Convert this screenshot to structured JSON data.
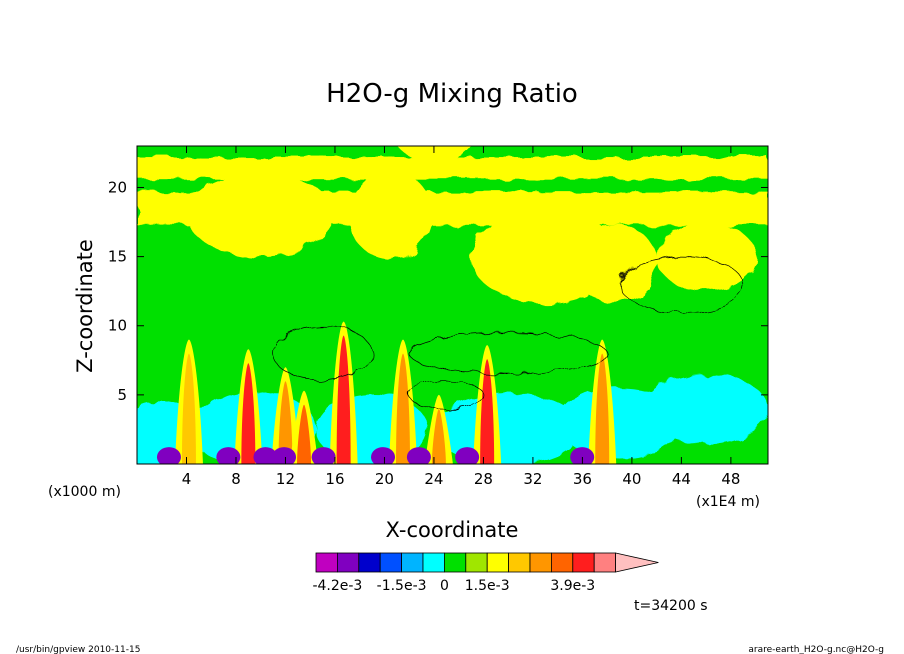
{
  "chart_data": {
    "type": "heatmap",
    "title": "H2O-g Mixing Ratio",
    "xlabel": "X-coordinate",
    "ylabel": "Z-coordinate",
    "x_unit_left": "(x1000 m)",
    "x_unit_right": "(x1E4 m)",
    "xlim": [
      0,
      51
    ],
    "ylim": [
      0,
      23
    ],
    "x_ticks": [
      4,
      8,
      12,
      16,
      20,
      24,
      28,
      32,
      36,
      40,
      44,
      48
    ],
    "y_ticks": [
      5,
      10,
      15,
      20
    ],
    "colorbar": {
      "colors": [
        "#c000c0",
        "#8000c0",
        "#0000cc",
        "#0050ff",
        "#00b4ff",
        "#00ffff",
        "#00e000",
        "#a0e600",
        "#ffff00",
        "#ffc800",
        "#ff9600",
        "#ff6400",
        "#ff1e1e",
        "#ff8080",
        "#ffc0c0"
      ],
      "labels": [
        {
          "text": "-4.2e-3",
          "index": 1
        },
        {
          "text": "-1.5e-3",
          "index": 4
        },
        {
          "text": "0",
          "index": 6
        },
        {
          "text": "1.5e-3",
          "index": 8
        },
        {
          "text": "3.9e-3",
          "index": 12
        }
      ]
    },
    "plumes": [
      {
        "x": 4.2,
        "top": 9.0,
        "core": "#ffc800"
      },
      {
        "x": 9.0,
        "top": 8.3,
        "core": "#ff1e1e"
      },
      {
        "x": 12.0,
        "top": 7.0,
        "core": "#ff9600"
      },
      {
        "x": 13.5,
        "top": 5.3,
        "core": "#ff6400"
      },
      {
        "x": 16.7,
        "top": 10.3,
        "core": "#ff1e1e"
      },
      {
        "x": 21.5,
        "top": 9.0,
        "core": "#ff9600"
      },
      {
        "x": 24.4,
        "top": 5.0,
        "core": "#ff9600"
      },
      {
        "x": 28.3,
        "top": 8.6,
        "core": "#ff1e1e"
      },
      {
        "x": 37.6,
        "top": 9.0,
        "core": "#ff9600"
      }
    ],
    "time_label": "t=34200 s",
    "footer_left": "/usr/bin/gpview   2010-11-15",
    "footer_right": "arare-earth_H2O-g.nc@H2O-g"
  }
}
